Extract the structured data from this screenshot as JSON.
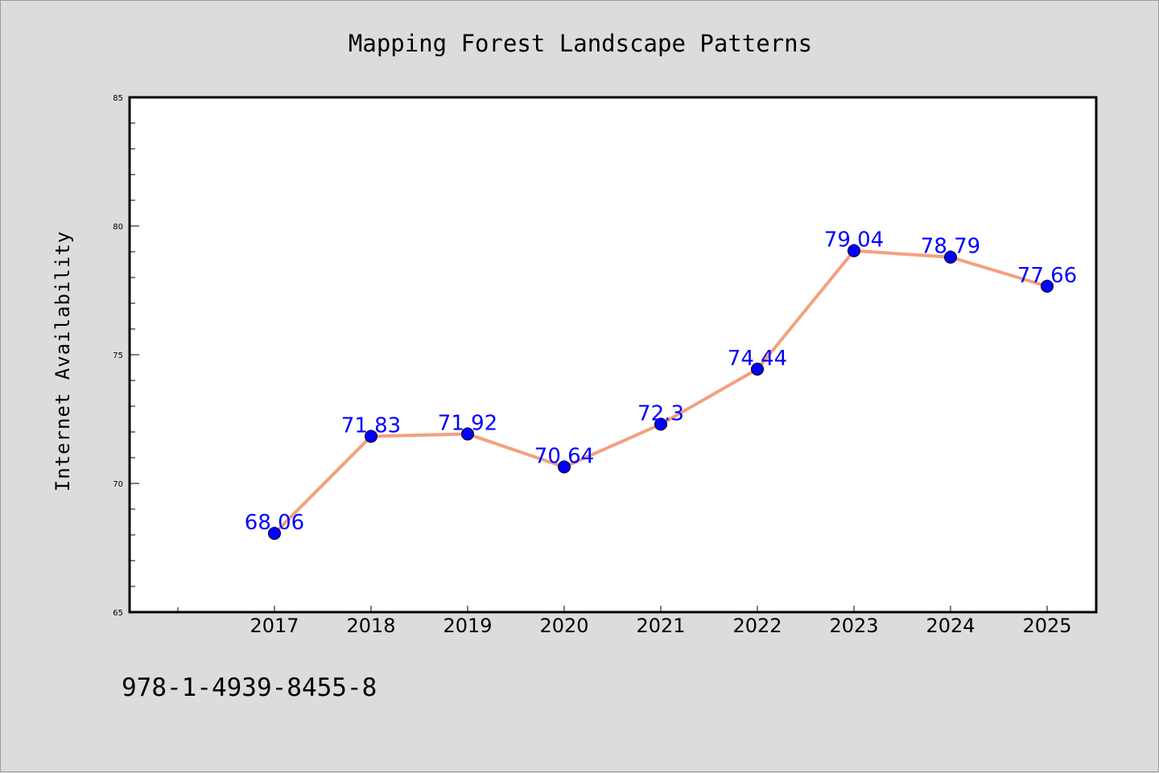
{
  "colors": {
    "background": "#dcdcdc",
    "plot_background": "#ffffff",
    "line": "#f4a07f",
    "marker": "#0000ff",
    "data_label": "#0000ff",
    "axis": "#000000"
  },
  "chart_data": {
    "type": "line",
    "title": "Mapping Forest Landscape Patterns",
    "xlabel": "",
    "ylabel": "Internet Availability",
    "categories": [
      "2017",
      "2018",
      "2019",
      "2020",
      "2021",
      "2022",
      "2023",
      "2024",
      "2025"
    ],
    "series": [
      {
        "values": [
          68.06,
          71.83,
          71.92,
          70.64,
          72.3,
          74.44,
          79.04,
          78.79,
          77.66
        ],
        "data_labels": [
          "68.06",
          "71.83",
          "71.92",
          "70.64",
          "72.3",
          "74.44",
          "79.04",
          "78.79",
          "77.66"
        ]
      }
    ],
    "ylim": [
      65,
      85
    ],
    "yticks": [
      "65",
      "70",
      "75",
      "80",
      "85"
    ],
    "grid": false,
    "legend": "none"
  },
  "footer": {
    "text": "978-1-4939-8455-8"
  }
}
